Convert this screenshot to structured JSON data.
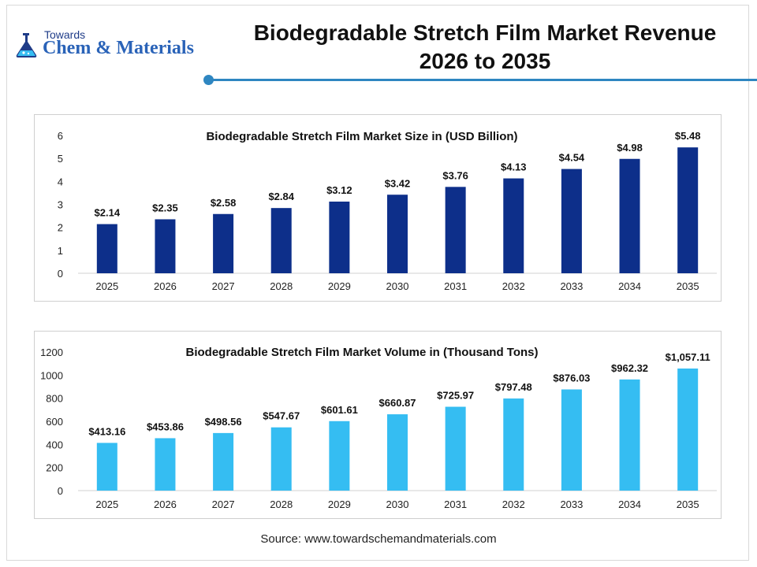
{
  "header": {
    "logo_small": "Towards",
    "logo_big": "Chem & Materials",
    "title_line1": "Biodegradable Stretch Film Market Revenue",
    "title_line2": "2026 to 2035",
    "accent_color": "#2e86c1"
  },
  "source": "Source: www.towardschemandmaterials.com",
  "chart_data": [
    {
      "type": "bar",
      "title": "Biodegradable Stretch Film Market Size in (USD Billion)",
      "xlabel": "",
      "ylabel": "",
      "categories": [
        "2025",
        "2026",
        "2027",
        "2028",
        "2029",
        "2030",
        "2031",
        "2032",
        "2033",
        "2034",
        "2035"
      ],
      "values": [
        2.14,
        2.35,
        2.58,
        2.84,
        3.12,
        3.42,
        3.76,
        4.13,
        4.54,
        4.98,
        5.48
      ],
      "value_labels": [
        "$2.14",
        "$2.35",
        "$2.58",
        "$2.84",
        "$3.12",
        "$3.42",
        "$3.76",
        "$4.13",
        "$4.54",
        "$4.98",
        "$5.48"
      ],
      "ylim": [
        0,
        6
      ],
      "yticks": [
        0,
        1,
        2,
        3,
        4,
        5,
        6
      ],
      "bar_color": "#0d2f8a",
      "grid": false
    },
    {
      "type": "bar",
      "title": "Biodegradable Stretch Film Market Volume in (Thousand Tons)",
      "xlabel": "",
      "ylabel": "",
      "categories": [
        "2025",
        "2026",
        "2027",
        "2028",
        "2029",
        "2030",
        "2031",
        "2032",
        "2033",
        "2034",
        "2035"
      ],
      "values": [
        413.16,
        453.86,
        498.56,
        547.67,
        601.61,
        660.87,
        725.97,
        797.48,
        876.03,
        962.32,
        1057.11
      ],
      "value_labels": [
        "$413.16",
        "$453.86",
        "$498.56",
        "$547.67",
        "$601.61",
        "$660.87",
        "$725.97",
        "$797.48",
        "$876.03",
        "$962.32",
        "$1,057.11"
      ],
      "ylim": [
        0,
        1200
      ],
      "yticks": [
        0,
        200,
        400,
        600,
        800,
        1000,
        1200
      ],
      "bar_color": "#35bdf2",
      "grid": false
    }
  ]
}
